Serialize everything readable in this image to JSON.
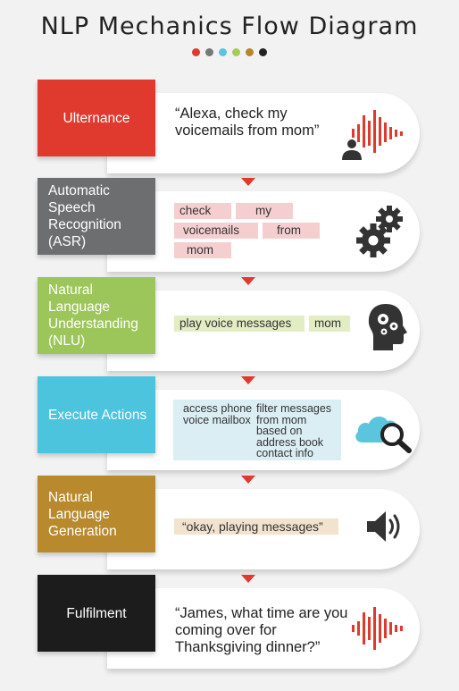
{
  "title": "NLP Mechanics Flow Diagram",
  "dot_colors": [
    "#e03a2f",
    "#777777",
    "#5bc5de",
    "#a7cb57",
    "#b8862a",
    "#222222"
  ],
  "steps": [
    {
      "label": "Ulternance",
      "color": "#e03a2f",
      "quote": "“Alexa, check my voicemails from mom”",
      "icon": "sound-wave-person-icon"
    },
    {
      "label": "Automatic Speech Recognition (ASR)",
      "color": "#6d6e70",
      "tags": [
        "check",
        "my",
        "voicemails",
        "from",
        "mom"
      ],
      "icon": "gears-icon"
    },
    {
      "label": "Natural Language Understanding (NLU)",
      "color": "#9dc65a",
      "tags": [
        "play voice messages",
        "mom"
      ],
      "icon": "head-gears-icon"
    },
    {
      "label": "Execute Actions",
      "color": "#4cc4dd",
      "left_text": "access phone voice mailbox",
      "right_text": "filter messages from mom based on address book contact info",
      "icon": "cloud-search-icon"
    },
    {
      "label": "Natural Language Generation",
      "color": "#b88a2d",
      "tags": [
        "“okay, playing messages”"
      ],
      "icon": "speaker-icon"
    },
    {
      "label": "Fulfilment",
      "color": "#1c1c1c",
      "quote": "“James, what time are you coming over for Thanksgiving dinner?”",
      "icon": "sound-wave-icon"
    }
  ]
}
